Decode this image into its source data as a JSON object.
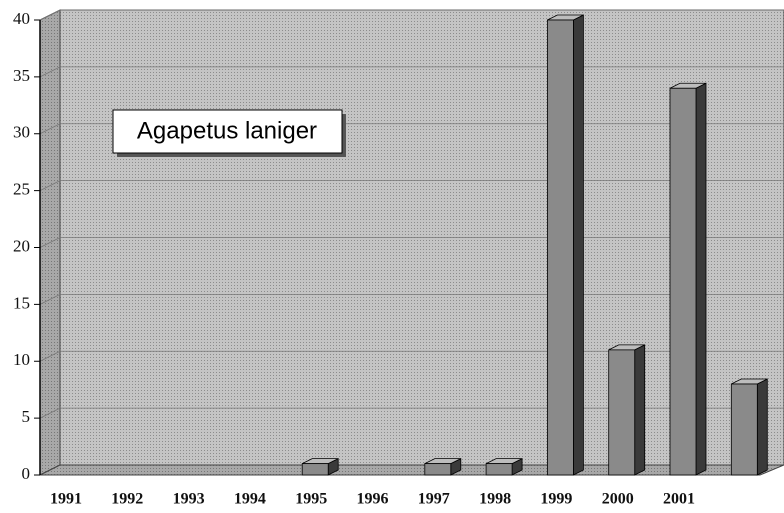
{
  "chart_data": {
    "type": "bar3d",
    "title": "Agapetus laniger",
    "categories": [
      "1991",
      "1992",
      "1993",
      "1994",
      "1995",
      "1996",
      "1997",
      "1998",
      "1999",
      "2000",
      "2001",
      null
    ],
    "values": [
      0,
      0,
      0,
      0,
      1,
      0,
      1,
      1,
      40,
      11,
      34,
      8
    ],
    "color": "#8a8a8a",
    "ylim": [
      0,
      40
    ],
    "yticks": [
      0,
      5,
      10,
      15,
      20,
      25,
      30,
      35,
      40
    ],
    "grid": true
  }
}
